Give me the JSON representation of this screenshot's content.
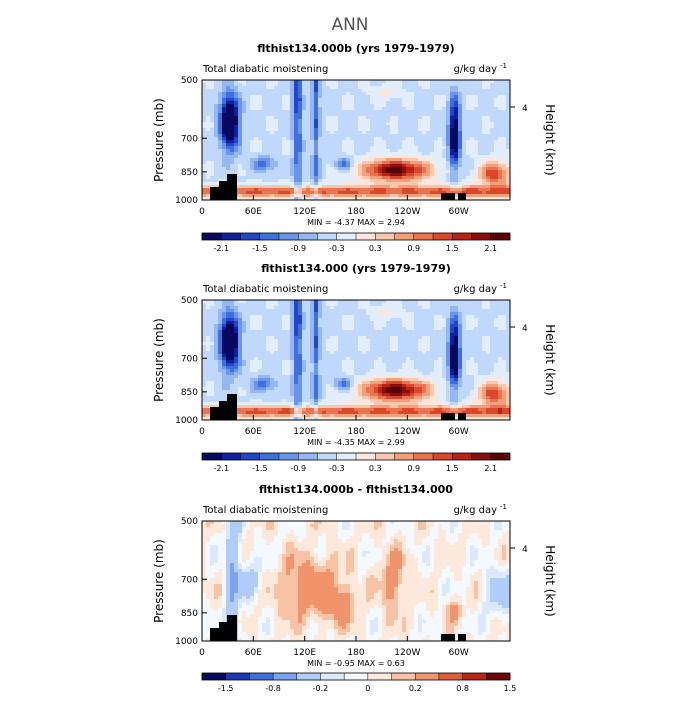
{
  "page_title": "ANN",
  "chart_data": [
    {
      "type": "heatmap",
      "title": "flthist134.000b (yrs 1979-1979)",
      "subtitle_left": "Total diabatic moistening",
      "subtitle_right": "g/kg day",
      "units_exponent": "-1",
      "ylabel": "Pressure (mb)",
      "ylabel_right": "Height (km)",
      "x_ticks": [
        "0",
        "60E",
        "120E",
        "180",
        "120W",
        "60W"
      ],
      "y_ticks": [
        "500",
        "700",
        "850",
        "1000"
      ],
      "right_ticks": [
        "4"
      ],
      "min_max_text": "MIN =   -4.37   MAX =    2.94",
      "colorbar_levels": [
        -2.1,
        -1.8,
        -1.5,
        -1.2,
        -0.9,
        -0.6,
        -0.3,
        0,
        0.3,
        0.6,
        0.9,
        1.2,
        1.5,
        1.8,
        2.1
      ],
      "colorbar_labels": [
        "-2.1",
        "-1.5",
        "-0.9",
        "-0.3",
        "0.3",
        "0.9",
        "1.5",
        "2.1"
      ]
    },
    {
      "type": "heatmap",
      "title": "flthist134.000 (yrs 1979-1979)",
      "subtitle_left": "Total diabatic moistening",
      "subtitle_right": "g/kg day",
      "units_exponent": "-1",
      "ylabel": "Pressure (mb)",
      "ylabel_right": "Height (km)",
      "x_ticks": [
        "0",
        "60E",
        "120E",
        "180",
        "120W",
        "60W"
      ],
      "y_ticks": [
        "500",
        "700",
        "850",
        "1000"
      ],
      "right_ticks": [
        "4"
      ],
      "min_max_text": "MIN =   -4.35   MAX =    2.99",
      "colorbar_levels": [
        -2.1,
        -1.8,
        -1.5,
        -1.2,
        -0.9,
        -0.6,
        -0.3,
        0,
        0.3,
        0.6,
        0.9,
        1.2,
        1.5,
        1.8,
        2.1
      ],
      "colorbar_labels": [
        "-2.1",
        "-1.5",
        "-0.9",
        "-0.3",
        "0.3",
        "0.9",
        "1.5",
        "2.1"
      ]
    },
    {
      "type": "heatmap",
      "title": "flthist134.000b - flthist134.000",
      "subtitle_left": "Total diabatic moistening",
      "subtitle_right": "g/kg day",
      "units_exponent": "-1",
      "ylabel": "Pressure (mb)",
      "ylabel_right": "Height (km)",
      "x_ticks": [
        "0",
        "60E",
        "120E",
        "180",
        "120W",
        "60W"
      ],
      "y_ticks": [
        "500",
        "700",
        "850",
        "1000"
      ],
      "right_ticks": [
        "4"
      ],
      "min_max_text": "MIN =   -0.95   MAX =    0.63",
      "colorbar_levels": [
        -1.5,
        -1.2,
        -0.8,
        -0.5,
        -0.2,
        -0.1,
        0,
        0.1,
        0.2,
        0.5,
        0.8,
        1.2,
        1.5
      ],
      "colorbar_labels": [
        "-1.5",
        "-0.8",
        "-0.2",
        "0",
        "0.2",
        "0.8",
        "1.5"
      ]
    }
  ],
  "colors": {
    "scale": [
      "#08085e",
      "#0e1fa0",
      "#2346c8",
      "#3f6fdc",
      "#6a95ea",
      "#95b8f3",
      "#c0d8fb",
      "#e2eefe",
      "#fde6dc",
      "#f9c7ad",
      "#f3a07a",
      "#ea744f",
      "#d9472c",
      "#b82316",
      "#8a0c0c",
      "#5a0505"
    ],
    "diff_scale": [
      "#08085e",
      "#1d37b5",
      "#3f6fdc",
      "#7ba3ee",
      "#b0ccf8",
      "#dce9fd",
      "#f4f8ff",
      "#fde8dc",
      "#f8c2a4",
      "#ef946b",
      "#df5e3a",
      "#b8261a",
      "#6e0808"
    ]
  }
}
